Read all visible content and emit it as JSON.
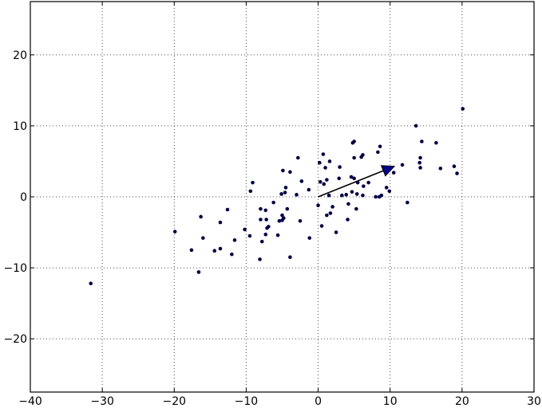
{
  "chart_data": {
    "type": "scatter",
    "title": "",
    "xlabel": "",
    "ylabel": "",
    "xlim": [
      -40,
      30
    ],
    "ylim": [
      -27.5,
      27.5
    ],
    "grid": true,
    "x_ticks": [
      -40,
      -30,
      -20,
      -10,
      0,
      10,
      20,
      30
    ],
    "y_ticks": [
      -20,
      -10,
      0,
      10,
      20
    ],
    "x_tick_labels": [
      "−40",
      "−30",
      "−20",
      "−10",
      "0",
      "10",
      "20",
      "30"
    ],
    "y_tick_labels": [
      "−20",
      "−10",
      "0",
      "10",
      "20"
    ],
    "colors": {
      "points": "#000044",
      "arrow_fill": "#00008b",
      "arrow_stroke": "#000000"
    },
    "points": [
      [
        20.1,
        12.4
      ],
      [
        13.6,
        10.0
      ],
      [
        14.4,
        7.8
      ],
      [
        16.4,
        7.6
      ],
      [
        14.2,
        5.5
      ],
      [
        14.1,
        4.8
      ],
      [
        14.2,
        4.1
      ],
      [
        17.0,
        4.0
      ],
      [
        18.9,
        4.3
      ],
      [
        19.3,
        3.3
      ],
      [
        11.7,
        4.5
      ],
      [
        10.5,
        3.4
      ],
      [
        9.9,
        0.8
      ],
      [
        9.5,
        1.3
      ],
      [
        8.8,
        0.2
      ],
      [
        8.5,
        0.0
      ],
      [
        8.0,
        0.0
      ],
      [
        8.6,
        7.1
      ],
      [
        8.3,
        6.3
      ],
      [
        5.0,
        7.8
      ],
      [
        4.8,
        7.6
      ],
      [
        6.2,
        5.9
      ],
      [
        6.0,
        5.6
      ],
      [
        5.0,
        5.5
      ],
      [
        3.0,
        4.2
      ],
      [
        1.6,
        5.0
      ],
      [
        0.7,
        6.0
      ],
      [
        0.2,
        4.8
      ],
      [
        1.0,
        4.1
      ],
      [
        4.6,
        2.8
      ],
      [
        5.0,
        2.6
      ],
      [
        2.9,
        2.6
      ],
      [
        1.2,
        2.4
      ],
      [
        0.3,
        2.1
      ],
      [
        0.8,
        1.8
      ],
      [
        5.5,
        2.0
      ],
      [
        6.3,
        1.5
      ],
      [
        7.0,
        2.0
      ],
      [
        4.7,
        0.7
      ],
      [
        5.4,
        0.4
      ],
      [
        6.2,
        0.2
      ],
      [
        3.9,
        0.3
      ],
      [
        3.3,
        0.2
      ],
      [
        1.5,
        0.2
      ],
      [
        4.2,
        -1.0
      ],
      [
        2.0,
        -1.4
      ],
      [
        0.0,
        -1.2
      ],
      [
        5.3,
        -1.7
      ],
      [
        1.7,
        -2.3
      ],
      [
        1.2,
        -2.6
      ],
      [
        4.1,
        -3.2
      ],
      [
        0.5,
        -4.1
      ],
      [
        2.5,
        -5.0
      ],
      [
        -1.2,
        -5.8
      ],
      [
        12.4,
        -0.8
      ],
      [
        -2.8,
        5.5
      ],
      [
        -4.9,
        3.7
      ],
      [
        -3.9,
        3.5
      ],
      [
        -9.1,
        2.0
      ],
      [
        -9.4,
        0.8
      ],
      [
        -2.3,
        2.2
      ],
      [
        -4.5,
        1.3
      ],
      [
        -4.6,
        0.6
      ],
      [
        -3.0,
        0.3
      ],
      [
        -1.3,
        1.0
      ],
      [
        -5.1,
        0.4
      ],
      [
        -6.2,
        -0.8
      ],
      [
        -4.3,
        -1.7
      ],
      [
        -5.0,
        -2.6
      ],
      [
        -7.3,
        -1.9
      ],
      [
        -8.0,
        -1.7
      ],
      [
        -4.8,
        -3.0
      ],
      [
        -5.0,
        -3.3
      ],
      [
        -2.5,
        -3.4
      ],
      [
        -5.4,
        -3.4
      ],
      [
        -7.2,
        -3.2
      ],
      [
        -8.0,
        -3.2
      ],
      [
        -6.9,
        -4.2
      ],
      [
        -7.1,
        -4.4
      ],
      [
        -5.6,
        -5.4
      ],
      [
        -7.3,
        -5.3
      ],
      [
        -9.5,
        -5.5
      ],
      [
        -7.8,
        -6.3
      ],
      [
        -8.1,
        -8.8
      ],
      [
        -3.9,
        -8.5
      ],
      [
        -10.2,
        -4.6
      ],
      [
        -11.6,
        -6.1
      ],
      [
        -12.0,
        -8.1
      ],
      [
        -12.6,
        -1.8
      ],
      [
        -13.6,
        -3.6
      ],
      [
        -16.3,
        -2.8
      ],
      [
        -14.4,
        -7.6
      ],
      [
        -13.6,
        -7.3
      ],
      [
        -16.0,
        -5.8
      ],
      [
        -17.6,
        -7.5
      ],
      [
        -16.6,
        -10.6
      ],
      [
        -19.9,
        -4.9
      ],
      [
        -31.6,
        -12.2
      ]
    ],
    "arrow": {
      "from": [
        0,
        0
      ],
      "to": [
        10.6,
        4.3
      ]
    }
  }
}
